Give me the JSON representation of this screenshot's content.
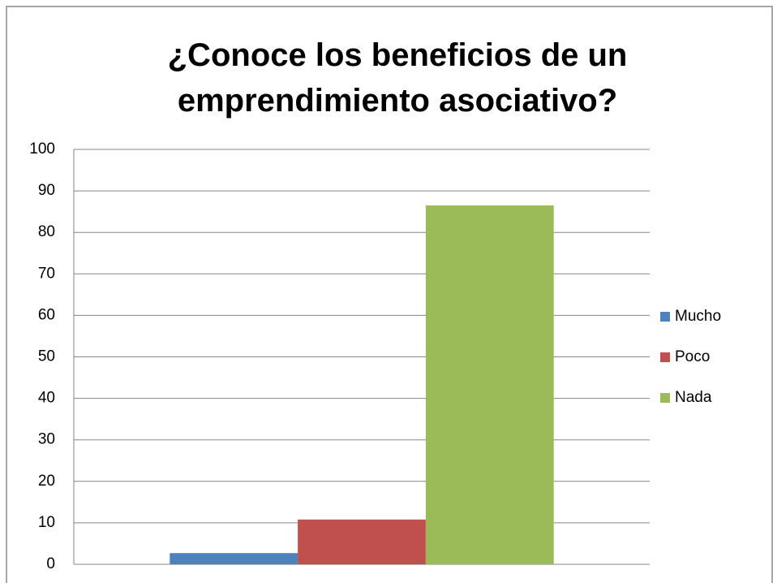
{
  "chart_data": {
    "type": "bar",
    "title": "¿Conoce los beneficios de un emprendimiento asociativo?",
    "categories": [
      null
    ],
    "series": [
      {
        "name": "Mucho",
        "color": "#4f81bd",
        "values": [
          2.7
        ]
      },
      {
        "name": "Poco",
        "color": "#c0504d",
        "values": [
          10.8
        ]
      },
      {
        "name": "Nada",
        "color": "#9bbb59",
        "values": [
          86.5
        ]
      }
    ],
    "ylim": [
      0,
      100
    ],
    "yticks": [
      0,
      10,
      20,
      30,
      40,
      50,
      60,
      70,
      80,
      90,
      100
    ],
    "grid": true,
    "legend": "right"
  }
}
